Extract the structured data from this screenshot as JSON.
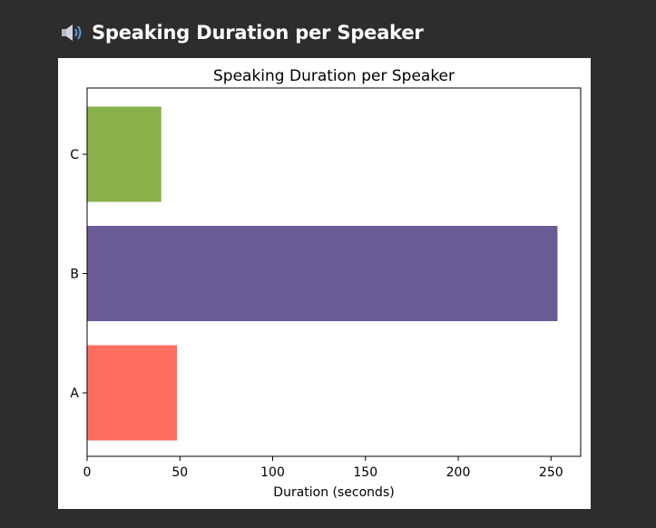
{
  "header": {
    "icon": "speaker-icon",
    "title": "Speaking Duration per Speaker"
  },
  "chart_data": {
    "type": "bar",
    "orientation": "horizontal",
    "title": "Speaking Duration per Speaker",
    "xlabel": "Duration (seconds)",
    "ylabel": "",
    "categories": [
      "A",
      "B",
      "C"
    ],
    "values": [
      48.5,
      253.5,
      40
    ],
    "colors": [
      "#ff6f61",
      "#6b5b95",
      "#88b04b"
    ],
    "xlim": [
      0,
      266
    ],
    "xticks": [
      0,
      50,
      100,
      150,
      200,
      250
    ],
    "grid": false
  }
}
